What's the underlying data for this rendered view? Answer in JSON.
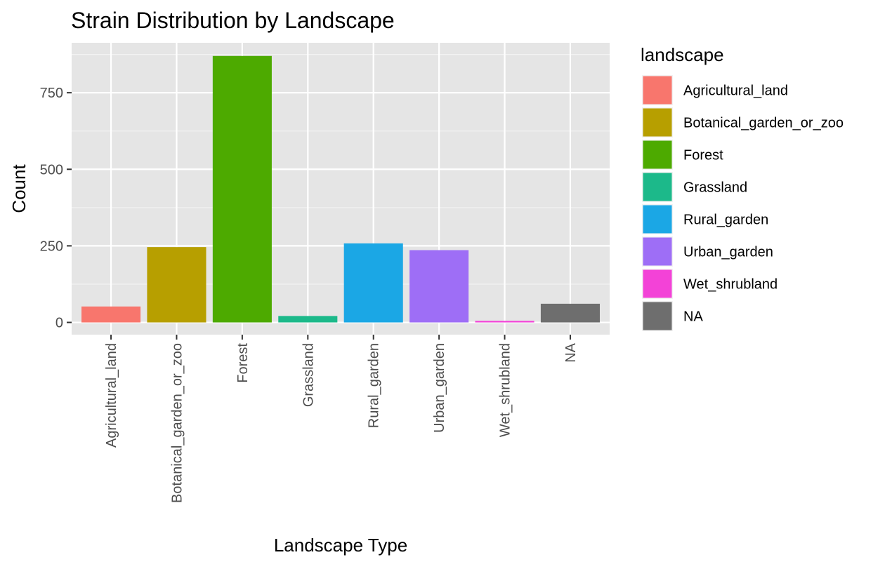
{
  "chart_data": {
    "type": "bar",
    "title": "Strain Distribution by Landscape",
    "xlabel": "Landscape Type",
    "ylabel": "Count",
    "categories": [
      "Agricultural_land",
      "Botanical_garden_or_zoo",
      "Forest",
      "Grassland",
      "Rural_garden",
      "Urban_garden",
      "Wet_shrubland",
      "NA"
    ],
    "values": [
      52,
      246,
      870,
      21,
      258,
      236,
      5,
      61
    ],
    "colors": [
      "#F8766D",
      "#B79F00",
      "#4DAA00",
      "#1CB98A",
      "#1BA7E5",
      "#9E6EF6",
      "#F342D7",
      "#6E6E6E"
    ],
    "yticks": [
      0,
      250,
      500,
      750
    ],
    "ylim": [
      -40,
      913
    ],
    "grid": true,
    "panel_background": "#E5E5E5",
    "legend": {
      "title": "landscape",
      "placement": "right",
      "entries": [
        "Agricultural_land",
        "Botanical_garden_or_zoo",
        "Forest",
        "Grassland",
        "Rural_garden",
        "Urban_garden",
        "Wet_shrubland",
        "NA"
      ]
    }
  }
}
